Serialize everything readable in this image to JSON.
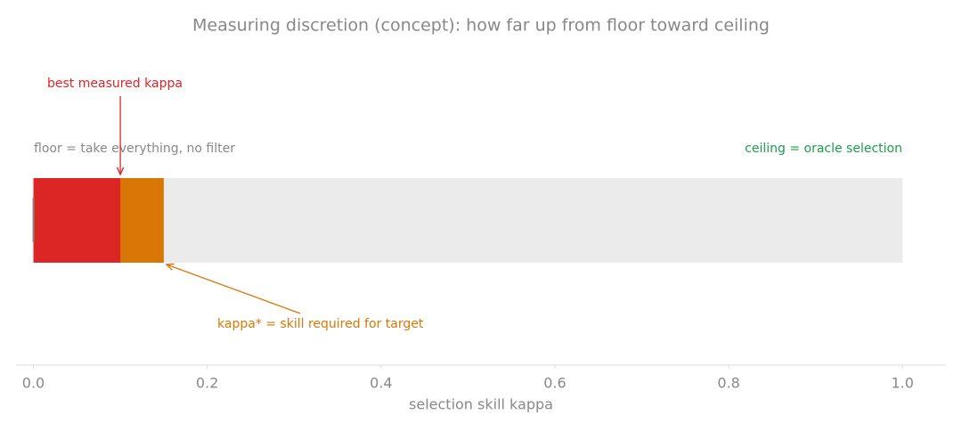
{
  "chart_data": {
    "type": "bar",
    "title": "Measuring discretion (concept): how far up from floor toward ceiling",
    "xlabel": "selection skill kappa",
    "values": [
      1,
      0.15,
      0.1
    ],
    "colors": [
      "#ebebeb",
      "#d97706",
      "#dc2626"
    ],
    "xlim": [
      -0.02,
      1.05
    ],
    "xticks": [
      {
        "value": 0,
        "label": "0.0"
      },
      0.2,
      0.4,
      0.6,
      0.8,
      {
        "value": 1,
        "label": "1.0"
      }
    ],
    "annotations": {
      "best": "best measured kappa",
      "target": "kappa* = skill required for target",
      "floor": "floor = take everything, no filter",
      "ceiling": "ceiling = oracle selection"
    }
  }
}
